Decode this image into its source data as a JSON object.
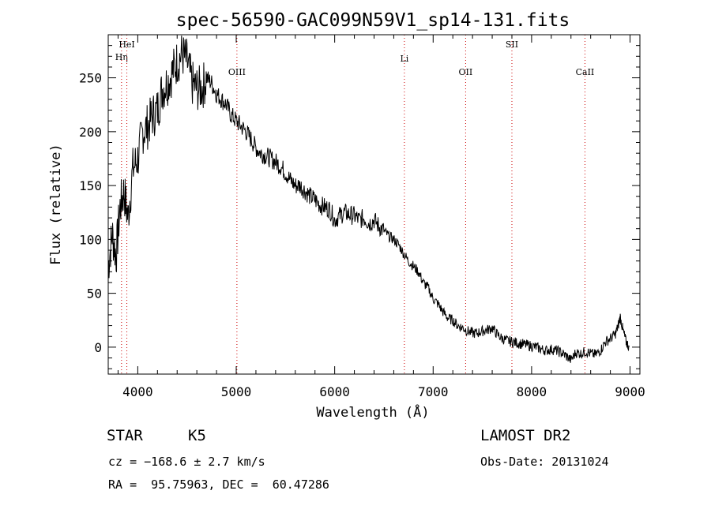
{
  "chart_data": {
    "type": "line",
    "title": "spec-56590-GAC099N59V1_sp14-131.fits",
    "xlabel": "Wavelength (Å)",
    "ylabel": "Flux (relative)",
    "xlim": [
      3700,
      9100
    ],
    "ylim": [
      -25,
      290
    ],
    "xticks": [
      4000,
      5000,
      6000,
      7000,
      8000,
      9000
    ],
    "yticks": [
      0,
      50,
      100,
      150,
      200,
      250
    ],
    "grid": false,
    "line_color": "#000000",
    "marker_color": "#cc0000",
    "series": [
      {
        "x": [
          3700,
          3740,
          3780,
          3820,
          3860,
          3900,
          3950,
          4000,
          4050,
          4100,
          4150,
          4200,
          4250,
          4300,
          4350,
          4400,
          4450,
          4500,
          4550,
          4600,
          4650,
          4700,
          4750,
          4800,
          4850,
          4900,
          4950,
          5000,
          5050,
          5100,
          5150,
          5200,
          5250,
          5300,
          5350,
          5400,
          5450,
          5500,
          5550,
          5600,
          5650,
          5700,
          5750,
          5800,
          5850,
          5900,
          5950,
          6000,
          6050,
          6100,
          6150,
          6200,
          6250,
          6300,
          6350,
          6400,
          6450,
          6500,
          6550,
          6600,
          6650,
          6700,
          6750,
          6800,
          6850,
          6900,
          6950,
          7000,
          7050,
          7100,
          7150,
          7200,
          7250,
          7300,
          7350,
          7400,
          7450,
          7500,
          7550,
          7600,
          7650,
          7700,
          7750,
          7800,
          7850,
          7900,
          7950,
          8000,
          8050,
          8100,
          8150,
          8200,
          8250,
          8300,
          8350,
          8400,
          8450,
          8500,
          8550,
          8600,
          8650,
          8700,
          8750,
          8800,
          8850,
          8880,
          8900,
          8930,
          8960,
          8990
        ],
        "y": [
          75,
          105,
          85,
          130,
          145,
          120,
          165,
          175,
          200,
          205,
          215,
          220,
          240,
          245,
          255,
          265,
          272,
          265,
          245,
          240,
          240,
          250,
          245,
          235,
          230,
          225,
          215,
          210,
          205,
          200,
          193,
          185,
          180,
          178,
          175,
          172,
          168,
          162,
          155,
          150,
          150,
          145,
          140,
          137,
          132,
          130,
          128,
          118,
          122,
          125,
          123,
          122,
          118,
          120,
          115,
          118,
          112,
          108,
          103,
          100,
          95,
          87,
          80,
          75,
          70,
          60,
          55,
          45,
          40,
          33,
          27,
          25,
          20,
          18,
          15,
          13,
          13,
          15,
          16,
          18,
          12,
          8,
          6,
          5,
          4,
          3,
          2,
          1,
          0,
          -2,
          -3,
          -2,
          -3,
          -5,
          -8,
          -12,
          -5,
          -6,
          -4,
          -6,
          -7,
          -3,
          5,
          8,
          12,
          20,
          28,
          15,
          5,
          0
        ]
      }
    ],
    "spectral_lines": [
      {
        "label": "Hη",
        "wavelength": 3835
      },
      {
        "label": "HeI",
        "wavelength": 3889
      },
      {
        "label": "OIII",
        "wavelength": 5007
      },
      {
        "label": "Li",
        "wavelength": 6708
      },
      {
        "label": "OII",
        "wavelength": 7330
      },
      {
        "label": "SII",
        "wavelength": 7800
      },
      {
        "label": "CaII",
        "wavelength": 8542
      }
    ]
  },
  "info": {
    "object_class": "STAR",
    "subclass": "K5",
    "survey": "LAMOST DR2",
    "redshift": "cz = −168.6 ± 2.7 km/s",
    "obs_date": "Obs-Date: 20131024",
    "coords": "RA =  95.75963, DEC =  60.47286"
  }
}
